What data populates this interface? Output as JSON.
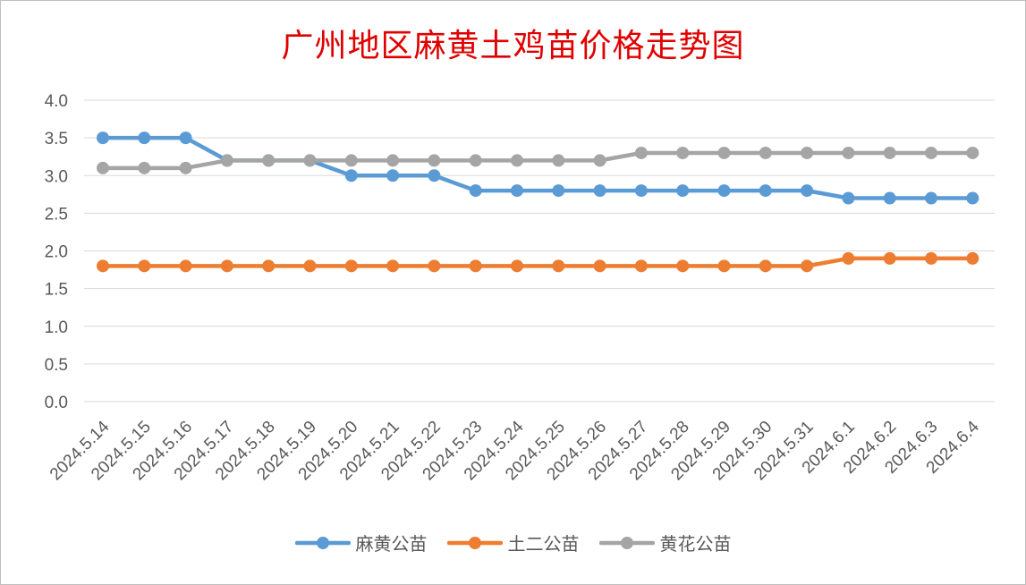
{
  "chart_data": {
    "type": "line",
    "title": "广州地区麻黄土鸡苗价格走势图",
    "categories": [
      "2024.5.14",
      "2024.5.15",
      "2024.5.16",
      "2024.5.17",
      "2024.5.18",
      "2024.5.19",
      "2024.5.20",
      "2024.5.21",
      "2024.5.22",
      "2024.5.23",
      "2024.5.24",
      "2024.5.25",
      "2024.5.26",
      "2024.5.27",
      "2024.5.28",
      "2024.5.29",
      "2024.5.30",
      "2024.5.31",
      "2024.6.1",
      "2024.6.2",
      "2024.6.3",
      "2024.6.4"
    ],
    "ylim": [
      0,
      4.0
    ],
    "yticks": [
      "0.0",
      "0.5",
      "1.0",
      "1.5",
      "2.0",
      "2.5",
      "3.0",
      "3.5",
      "4.0"
    ],
    "grid": true,
    "legend_position": "bottom",
    "series": [
      {
        "name": "麻黄公苗",
        "color": "#5b9bd5",
        "values": [
          3.5,
          3.5,
          3.5,
          3.2,
          3.2,
          3.2,
          3.0,
          3.0,
          3.0,
          2.8,
          2.8,
          2.8,
          2.8,
          2.8,
          2.8,
          2.8,
          2.8,
          2.8,
          2.7,
          2.7,
          2.7,
          2.7
        ]
      },
      {
        "name": "土二公苗",
        "color": "#ed7d31",
        "values": [
          1.8,
          1.8,
          1.8,
          1.8,
          1.8,
          1.8,
          1.8,
          1.8,
          1.8,
          1.8,
          1.8,
          1.8,
          1.8,
          1.8,
          1.8,
          1.8,
          1.8,
          1.8,
          1.9,
          1.9,
          1.9,
          1.9
        ]
      },
      {
        "name": "黄花公苗",
        "color": "#a5a5a5",
        "values": [
          3.1,
          3.1,
          3.1,
          3.2,
          3.2,
          3.2,
          3.2,
          3.2,
          3.2,
          3.2,
          3.2,
          3.2,
          3.2,
          3.3,
          3.3,
          3.3,
          3.3,
          3.3,
          3.3,
          3.3,
          3.3,
          3.3
        ]
      }
    ]
  }
}
